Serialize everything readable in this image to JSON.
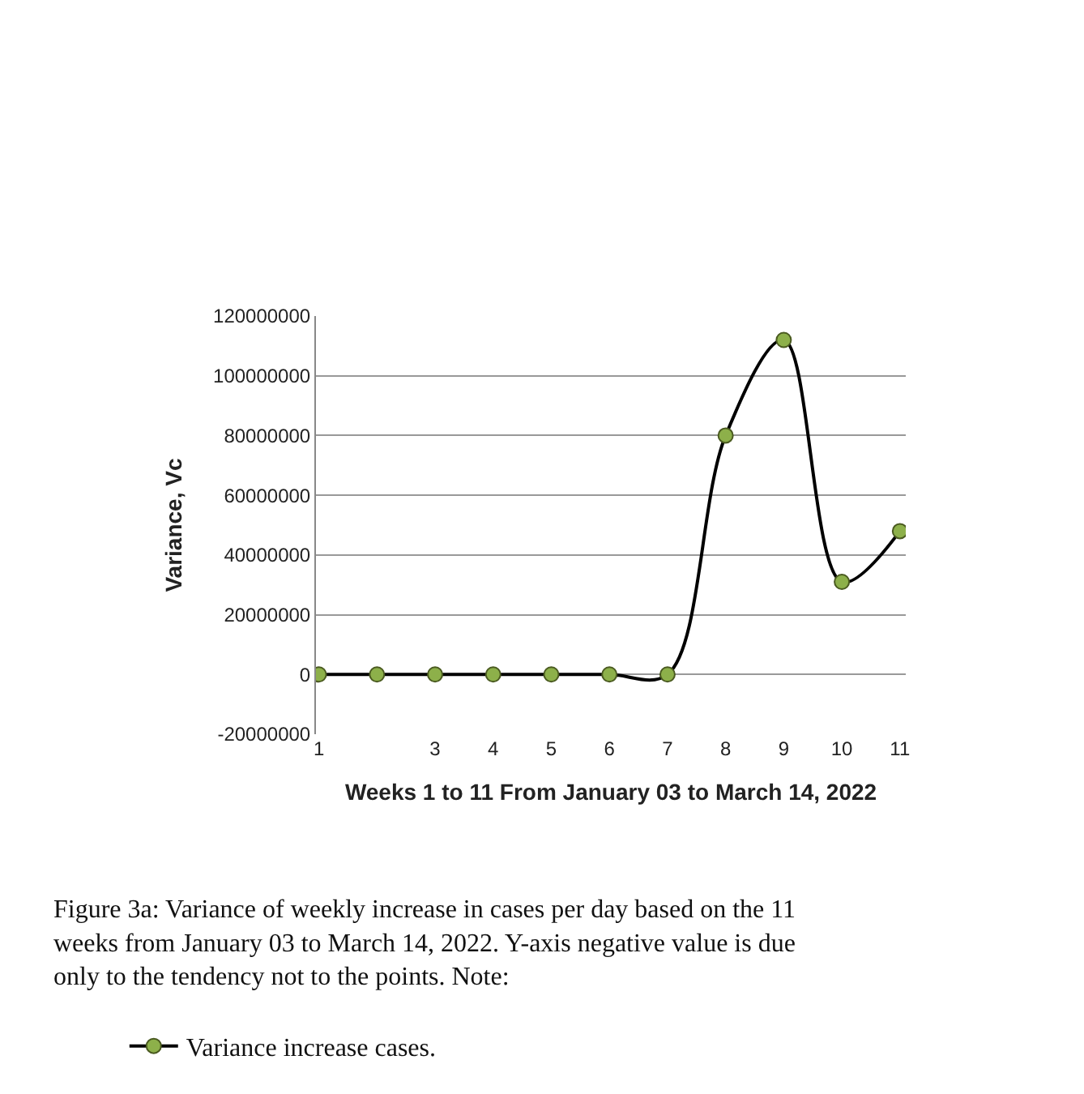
{
  "chart_data": {
    "type": "line",
    "xlabel": "Weeks 1 to 11 From January 03 to March 14, 2022",
    "ylabel": "Variance, Vc",
    "categories": [
      "1",
      null,
      "3",
      "4",
      "5",
      "6",
      "7",
      "8",
      "9",
      "10",
      "11"
    ],
    "series": [
      {
        "name": "Variance increase cases.",
        "color": "#000000",
        "values": [
          0,
          0,
          0,
          0,
          0,
          0,
          0,
          80000000,
          112000000,
          31000000,
          48000000
        ]
      }
    ],
    "ylim": [
      -20000000,
      120000000
    ],
    "yticks": [
      -20000000,
      0,
      20000000,
      40000000,
      60000000,
      80000000,
      100000000,
      120000000
    ],
    "grid": "y",
    "marker": "circle",
    "line_style": "solid",
    "legend": "bottom left",
    "annotations": [
      "Figure 3a: Variance of weekly increase in cases per day based on the 11 weeks from January 03 to March 14, 2022. Y-axis negative value is due only to the tendency not to the points. Note:"
    ]
  }
}
